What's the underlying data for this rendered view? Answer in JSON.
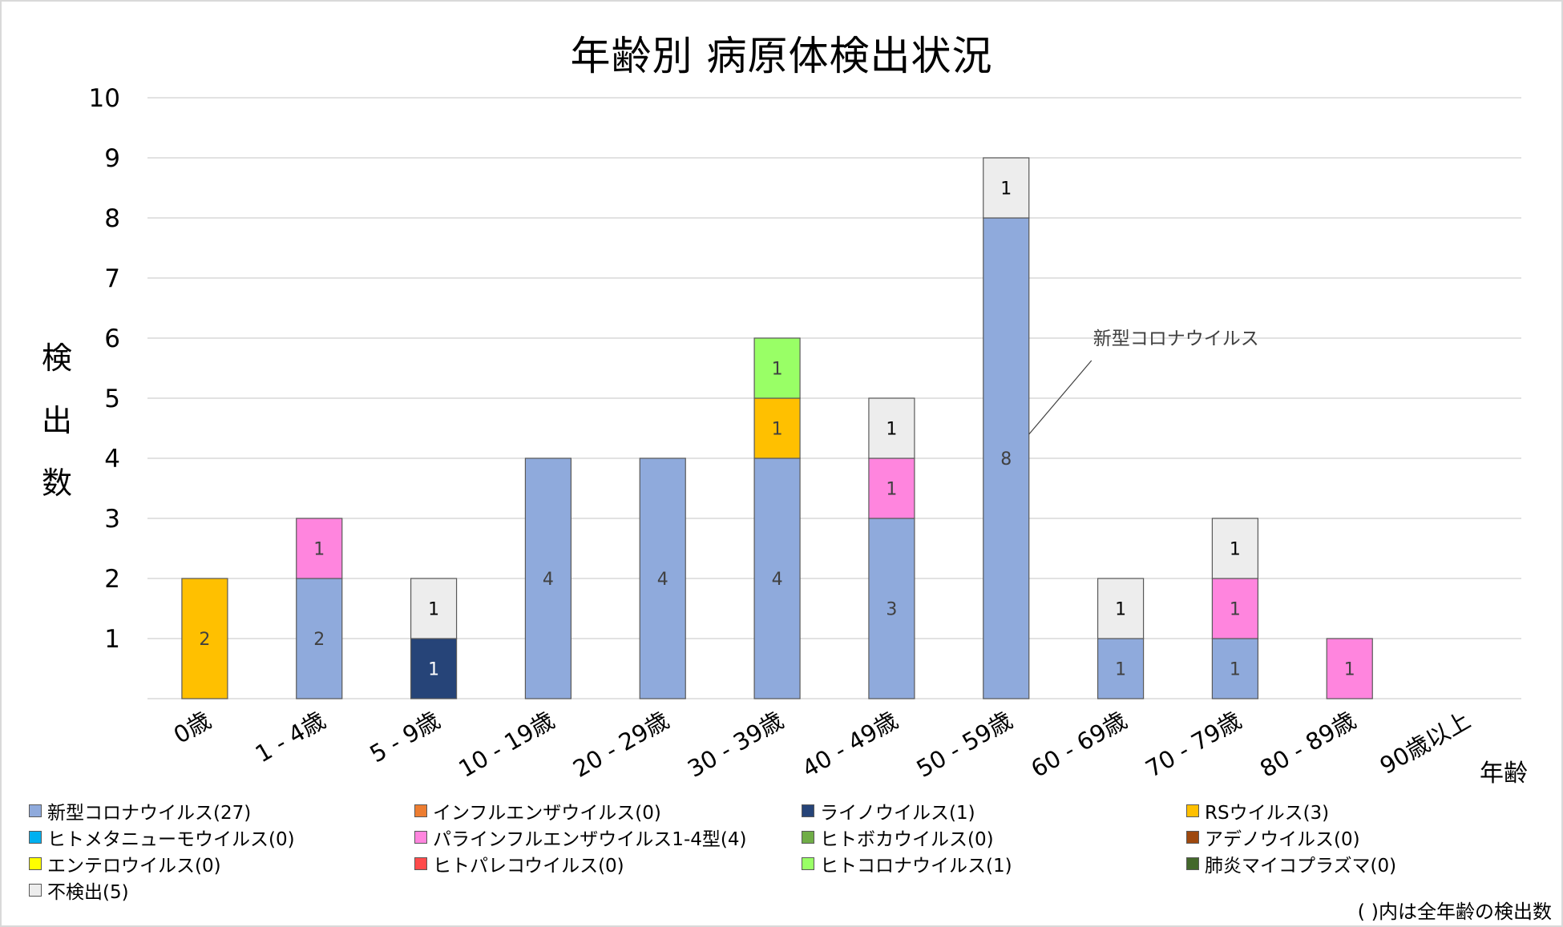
{
  "chart_data": {
    "type": "bar",
    "stacked": true,
    "title": "年齢別 病原体検出状況",
    "xlabel": "年齢",
    "ylabel": "検出数",
    "ylim": [
      0,
      10
    ],
    "yticks": [
      1,
      2,
      3,
      4,
      5,
      6,
      7,
      8,
      9,
      10
    ],
    "grid": true,
    "legend_position": "bottom",
    "categories": [
      "0歳",
      "1 - 4歳",
      "5 - 9歳",
      "10 - 19歳",
      "20 - 29歳",
      "30 - 39歳",
      "40 - 49歳",
      "50 - 59歳",
      "60 - 69歳",
      "70 - 79歳",
      "80 - 89歳",
      "90歳以上"
    ],
    "series": [
      {
        "name": "新型コロナウイルス",
        "legend_label": "新型コロナウイルス(27)",
        "color": "#8faadc",
        "label_color": "#404040",
        "values": [
          0,
          2,
          0,
          4,
          4,
          4,
          3,
          8,
          1,
          1,
          0,
          0
        ]
      },
      {
        "name": "インフルエンザウイルス",
        "legend_label": "インフルエンザウイルス(0)",
        "color": "#ed7d31",
        "label_color": "#404040",
        "values": [
          0,
          0,
          0,
          0,
          0,
          0,
          0,
          0,
          0,
          0,
          0,
          0
        ]
      },
      {
        "name": "ライノウイルス",
        "legend_label": "ライノウイルス(1)",
        "color": "#264478",
        "label_color": "#ffffff",
        "values": [
          0,
          0,
          1,
          0,
          0,
          0,
          0,
          0,
          0,
          0,
          0,
          0
        ]
      },
      {
        "name": "RSウイルス",
        "legend_label": "RSウイルス(3)",
        "color": "#ffc000",
        "label_color": "#404040",
        "values": [
          2,
          0,
          0,
          0,
          0,
          1,
          0,
          0,
          0,
          0,
          0,
          0
        ]
      },
      {
        "name": "ヒトメタニューモウイルス",
        "legend_label": "ヒトメタニューモウイルス(0)",
        "color": "#00b0f0",
        "label_color": "#404040",
        "values": [
          0,
          0,
          0,
          0,
          0,
          0,
          0,
          0,
          0,
          0,
          0,
          0
        ]
      },
      {
        "name": "パラインフルエンザウイルス1-4型",
        "legend_label": "パラインフルエンザウイルス1-4型(4)",
        "color": "#ff85de",
        "label_color": "#404040",
        "values": [
          0,
          1,
          0,
          0,
          0,
          0,
          1,
          0,
          0,
          1,
          1,
          0
        ]
      },
      {
        "name": "ヒトボカウイルス",
        "legend_label": "ヒトボカウイルス(0)",
        "color": "#70ad47",
        "label_color": "#404040",
        "values": [
          0,
          0,
          0,
          0,
          0,
          0,
          0,
          0,
          0,
          0,
          0,
          0
        ]
      },
      {
        "name": "アデノウイルス",
        "legend_label": "アデノウイルス(0)",
        "color": "#9e480e",
        "label_color": "#404040",
        "values": [
          0,
          0,
          0,
          0,
          0,
          0,
          0,
          0,
          0,
          0,
          0,
          0
        ]
      },
      {
        "name": "エンテロウイルス",
        "legend_label": "エンテロウイルス(0)",
        "color": "#ffff00",
        "label_color": "#404040",
        "values": [
          0,
          0,
          0,
          0,
          0,
          0,
          0,
          0,
          0,
          0,
          0,
          0
        ]
      },
      {
        "name": "ヒトパレコウイルス",
        "legend_label": "ヒトパレコウイルス(0)",
        "color": "#ff4b4b",
        "label_color": "#404040",
        "values": [
          0,
          0,
          0,
          0,
          0,
          0,
          0,
          0,
          0,
          0,
          0,
          0
        ]
      },
      {
        "name": "ヒトコロナウイルス",
        "legend_label": "ヒトコロナウイルス(1)",
        "color": "#99ff66",
        "label_color": "#404040",
        "values": [
          0,
          0,
          0,
          0,
          0,
          1,
          0,
          0,
          0,
          0,
          0,
          0
        ]
      },
      {
        "name": "肺炎マイコプラズマ",
        "legend_label": "肺炎マイコプラズマ(0)",
        "color": "#43682b",
        "label_color": "#404040",
        "values": [
          0,
          0,
          0,
          0,
          0,
          0,
          0,
          0,
          0,
          0,
          0,
          0
        ]
      },
      {
        "name": "不検出",
        "legend_label": "不検出(5)",
        "color": "#ededed",
        "label_color": "#000000",
        "values": [
          0,
          0,
          1,
          0,
          0,
          0,
          1,
          1,
          1,
          1,
          0,
          0
        ]
      }
    ],
    "annotations": [
      {
        "text": "新型コロナウイルス",
        "category": "50 - 59歳",
        "series": "新型コロナウイルス"
      }
    ],
    "note": "( )内は全年齢の検出数"
  }
}
